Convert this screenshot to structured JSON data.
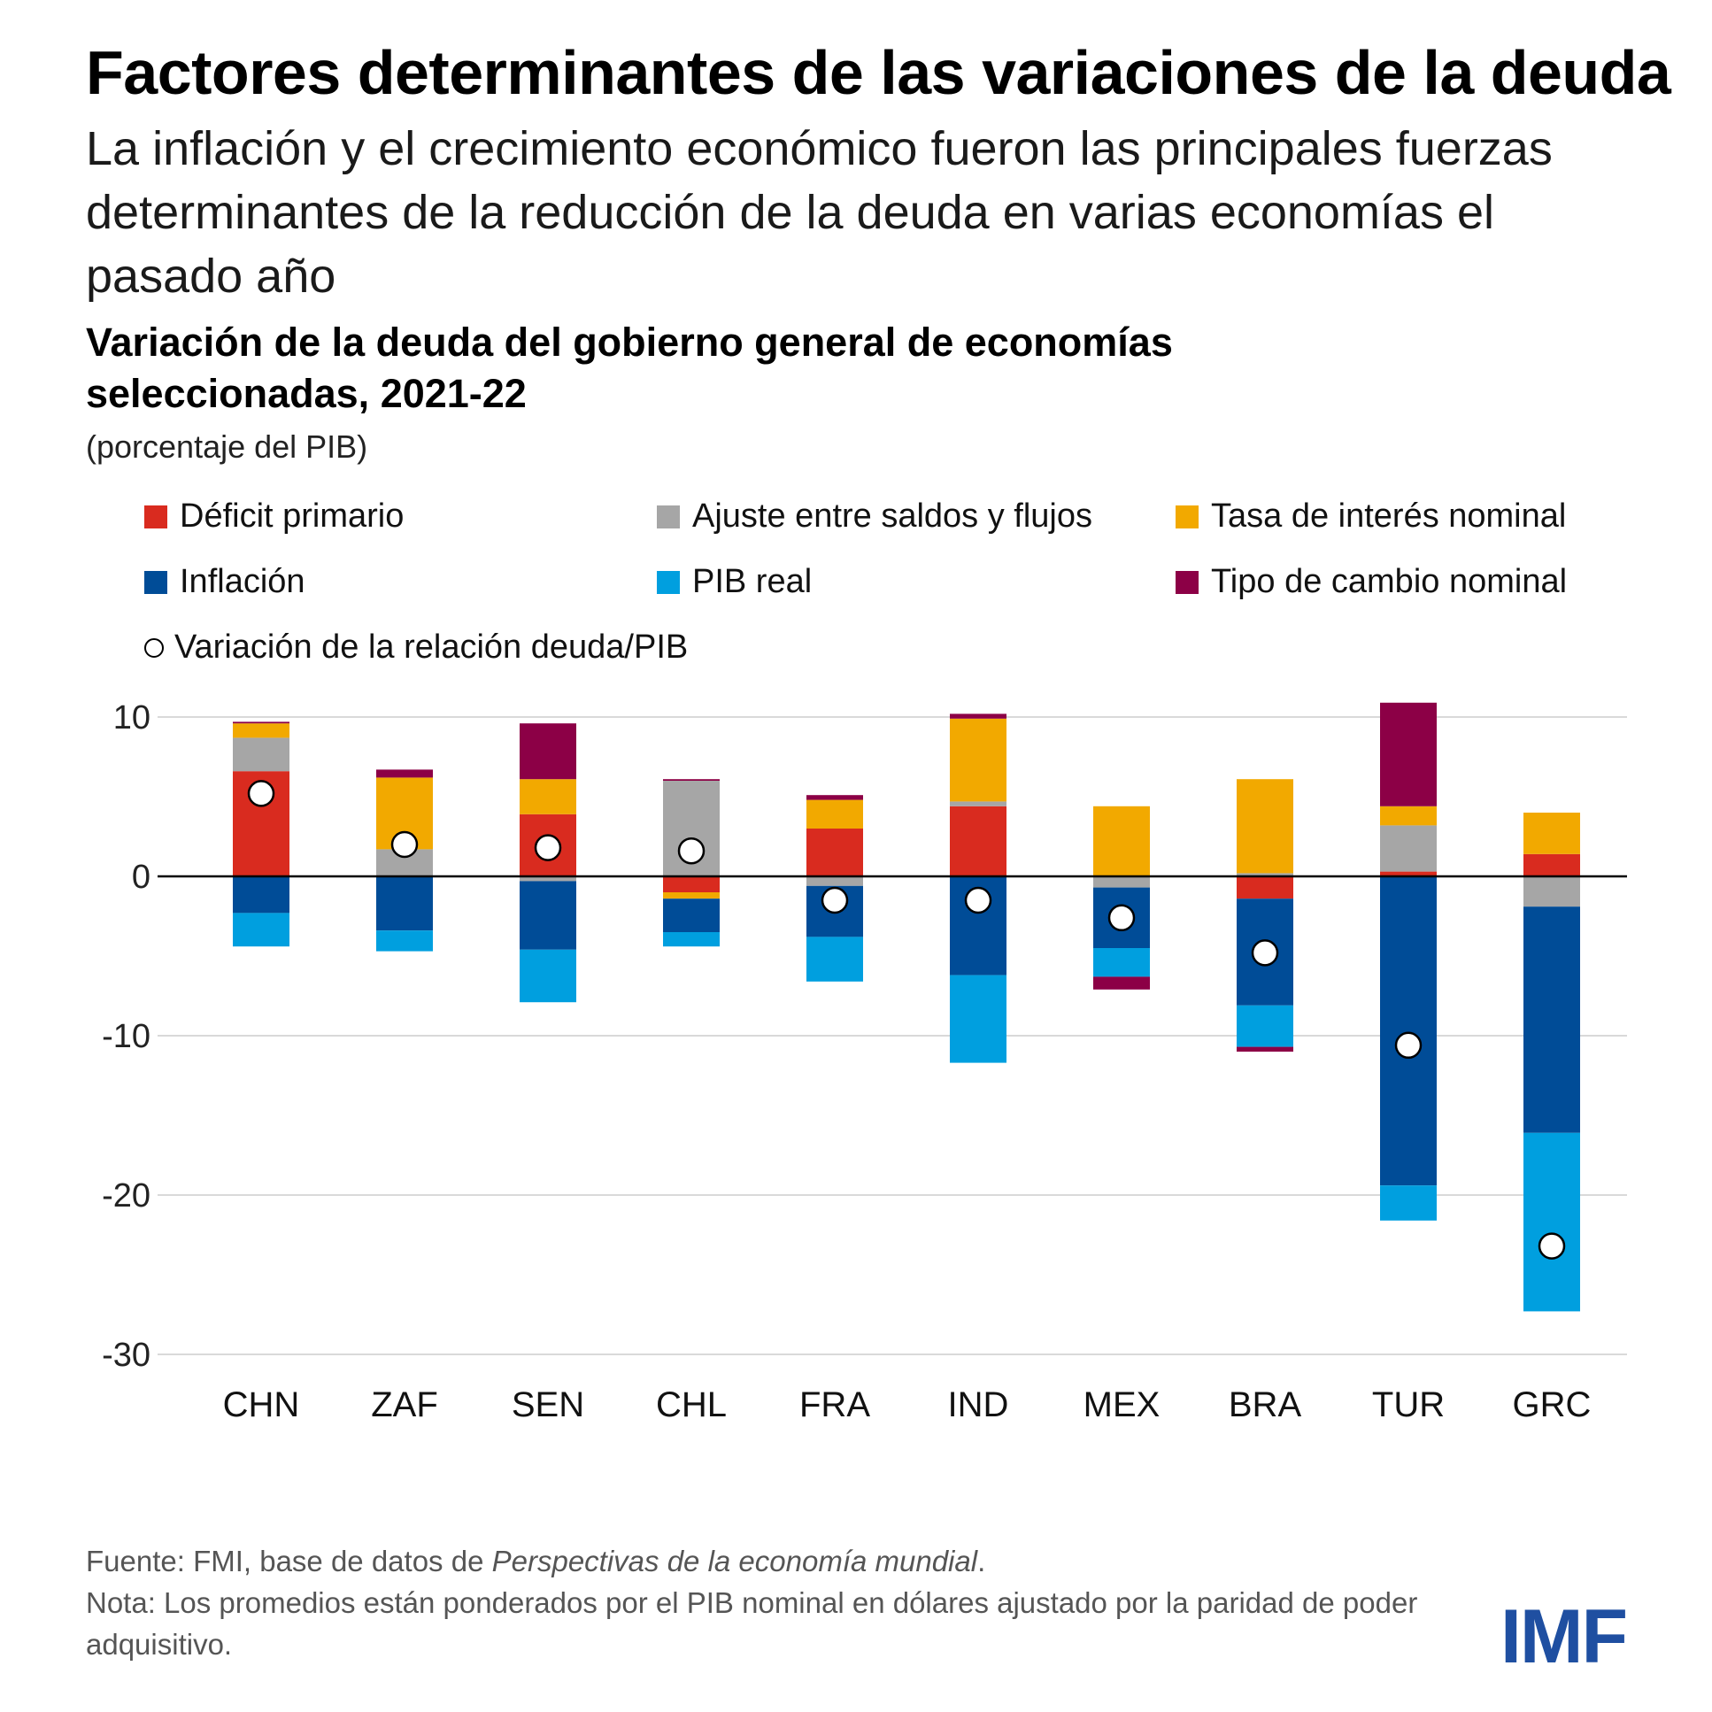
{
  "header": {
    "title": "Factores determinantes de las variaciones de la deuda",
    "subtitle": "La inflación y el crecimiento económico fueron las principales fuerzas determinantes de la reducción de la deuda en varias economías el pasado año"
  },
  "chart_data": {
    "type": "bar",
    "stacked": true,
    "title": "Variación de la deuda del gobierno general de economías seleccionadas, 2021-22",
    "units": "(porcentaje del PIB)",
    "xlabel": "",
    "ylabel": "",
    "ylim": [
      -30,
      10
    ],
    "yticks": [
      10,
      0,
      -10,
      -20,
      -30
    ],
    "ytick_labels": [
      "10",
      "0",
      "-10",
      "-20",
      "-30"
    ],
    "grid": true,
    "categories": [
      "CHN",
      "ZAF",
      "SEN",
      "CHL",
      "FRA",
      "IND",
      "MEX",
      "BRA",
      "TUR",
      "GRC"
    ],
    "series": [
      {
        "name": "Déficit primario",
        "color": "#d92b1f",
        "values": [
          6.6,
          0,
          3.9,
          -1.0,
          3.0,
          4.4,
          0,
          -1.4,
          0.3,
          1.4
        ]
      },
      {
        "name": "Ajuste entre saldos y flujos",
        "color": "#a6a6a6",
        "values": [
          2.1,
          1.7,
          -0.3,
          6.0,
          -0.6,
          0.3,
          -0.7,
          0.2,
          2.9,
          -1.9
        ]
      },
      {
        "name": "Tasa de interés nominal",
        "color": "#f2a900",
        "values": [
          0.9,
          4.5,
          2.2,
          -0.4,
          1.8,
          5.2,
          4.4,
          5.9,
          1.2,
          2.6
        ]
      },
      {
        "name": "Inflación",
        "color": "#004c97",
        "values": [
          -2.3,
          -3.4,
          -4.3,
          -2.1,
          -3.2,
          -6.2,
          -3.8,
          -6.7,
          -19.4,
          -14.2
        ]
      },
      {
        "name": "PIB real",
        "color": "#009fdf",
        "values": [
          -2.1,
          -1.3,
          -3.3,
          -0.9,
          -2.8,
          -5.5,
          -1.8,
          -2.6,
          -2.2,
          -11.2
        ]
      },
      {
        "name": "Tipo de cambio nominal",
        "color": "#8c0046",
        "values": [
          0.1,
          0.5,
          3.5,
          0.1,
          0.3,
          0.3,
          -0.8,
          -0.3,
          6.5,
          0
        ]
      }
    ],
    "change_ratio": {
      "name": "Variación de la relación deuda/PIB",
      "values": [
        5.2,
        2.0,
        1.8,
        1.6,
        -1.5,
        -1.5,
        -2.6,
        -4.8,
        -10.6,
        -23.2
      ]
    }
  },
  "legend": [
    {
      "label": "Déficit primario",
      "color": "#d92b1f"
    },
    {
      "label": "Ajuste entre saldos y flujos",
      "color": "#a6a6a6"
    },
    {
      "label": "Tasa de interés nominal",
      "color": "#f2a900"
    },
    {
      "label": "Inflación",
      "color": "#004c97"
    },
    {
      "label": "PIB real",
      "color": "#009fdf"
    },
    {
      "label": "Tipo de cambio nominal",
      "color": "#8c0046"
    },
    {
      "label": "Variación de la relación deuda/PIB"
    }
  ],
  "footer": {
    "source_prefix": "Fuente: FMI, base de datos de ",
    "source_italic": "Perspectivas de la economía mundial",
    "source_suffix": ".",
    "note": "Nota: Los promedios están ponderados por el PIB nominal en dólares ajustado por la paridad de poder adquisitivo."
  },
  "logo": "IMF"
}
